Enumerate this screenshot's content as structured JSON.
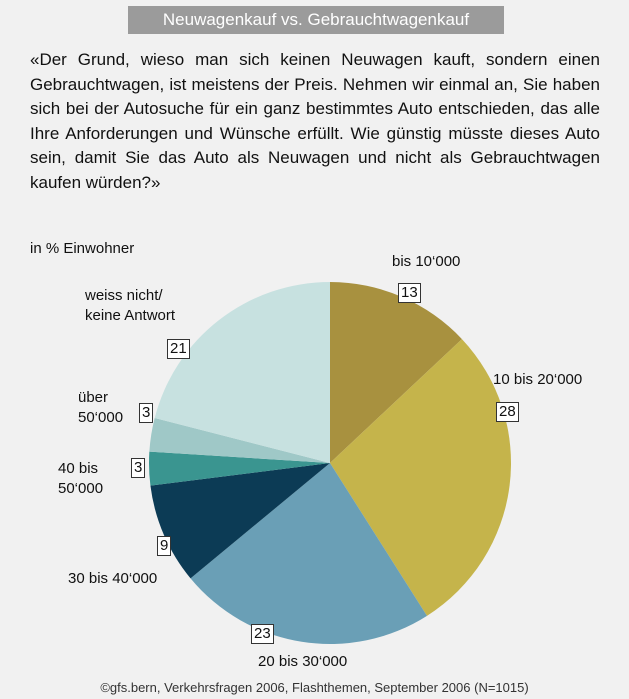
{
  "chart_data": {
    "type": "pie",
    "title": "Neuwagenkauf vs. Gebrauchtwagenkauf",
    "subtitle": "«Der Grund, wieso man sich keinen Neuwagen kauft, sondern einen Gebrauchtwagen, ist meistens der Preis. Nehmen wir einmal an, Sie haben sich bei der Autosuche für ein ganz bestimmtes Auto entschieden, das alle Ihre Anforderungen und Wünsche erfüllt. Wie günstig müsste dieses Auto sein, damit Sie das Auto als Neuwagen und nicht als Gebrauchtwagen kaufen würden?»",
    "unit_label": "in % Einwohner",
    "categories": [
      "bis 10‘000",
      "10 bis 20‘000",
      "20 bis 30‘000",
      "30 bis 40‘000",
      "40 bis\n50‘000",
      "über\n50‘000",
      "weiss nicht/\nkeine Antwort"
    ],
    "values": [
      13,
      28,
      23,
      9,
      3,
      3,
      21
    ],
    "colors": [
      "#a8913f",
      "#c5b44b",
      "#6a9fb6",
      "#0c3b55",
      "#3a9590",
      "#9fc8c7",
      "#c7e1e0"
    ],
    "source": "©gfs.bern, Verkehrsfragen 2006, Flashthemen, September 2006 (N=1015)"
  }
}
